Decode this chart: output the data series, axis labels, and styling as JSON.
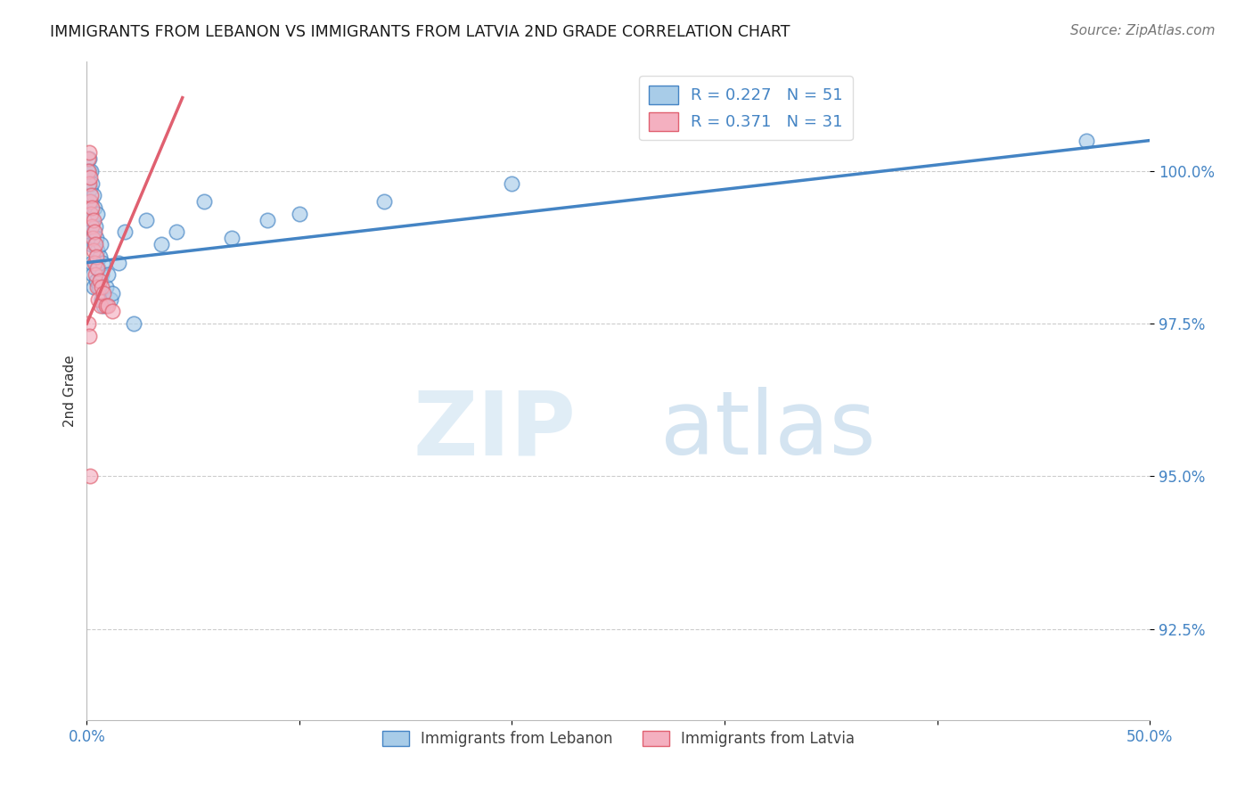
{
  "title": "IMMIGRANTS FROM LEBANON VS IMMIGRANTS FROM LATVIA 2ND GRADE CORRELATION CHART",
  "source": "Source: ZipAtlas.com",
  "ylabel": "2nd Grade",
  "legend_label1": "Immigrants from Lebanon",
  "legend_label2": "Immigrants from Latvia",
  "R1": 0.227,
  "N1": 51,
  "R2": 0.371,
  "N2": 31,
  "color1": "#a8cce8",
  "color2": "#f4b0c0",
  "line_color1": "#4484c4",
  "line_color2": "#e06070",
  "xlim": [
    0.0,
    50.0
  ],
  "ylim": [
    91.0,
    101.8
  ],
  "yticks": [
    92.5,
    95.0,
    97.5,
    100.0
  ],
  "ytick_labels": [
    "92.5%",
    "95.0%",
    "97.5%",
    "100.0%"
  ],
  "xtick_labels": [
    "0.0%",
    "",
    "",
    "",
    "",
    "50.0%"
  ],
  "watermark_zip": "ZIP",
  "watermark_atlas": "atlas",
  "leb_x": [
    0.05,
    0.08,
    0.1,
    0.1,
    0.12,
    0.13,
    0.15,
    0.15,
    0.18,
    0.2,
    0.2,
    0.22,
    0.25,
    0.25,
    0.28,
    0.3,
    0.3,
    0.32,
    0.35,
    0.38,
    0.4,
    0.42,
    0.45,
    0.45,
    0.48,
    0.5,
    0.55,
    0.58,
    0.6,
    0.65,
    0.68,
    0.7,
    0.75,
    0.8,
    0.9,
    1.0,
    1.1,
    1.2,
    1.5,
    1.8,
    2.2,
    2.8,
    3.5,
    4.2,
    5.5,
    6.8,
    8.5,
    10.0,
    14.0,
    20.0,
    47.0
  ],
  "leb_y": [
    99.8,
    100.0,
    99.5,
    100.2,
    99.3,
    100.0,
    99.0,
    99.7,
    98.8,
    99.5,
    100.0,
    98.5,
    99.2,
    99.8,
    98.3,
    99.0,
    99.6,
    98.1,
    98.8,
    99.4,
    98.5,
    99.1,
    98.2,
    98.9,
    98.7,
    99.3,
    98.4,
    98.1,
    98.6,
    98.8,
    97.9,
    98.3,
    98.5,
    97.8,
    98.1,
    98.3,
    97.9,
    98.0,
    98.5,
    99.0,
    97.5,
    99.2,
    98.8,
    99.0,
    99.5,
    98.9,
    99.2,
    99.3,
    99.5,
    99.8,
    100.5
  ],
  "lat_x": [
    0.05,
    0.08,
    0.1,
    0.12,
    0.15,
    0.15,
    0.18,
    0.2,
    0.22,
    0.25,
    0.28,
    0.3,
    0.32,
    0.35,
    0.38,
    0.4,
    0.42,
    0.45,
    0.48,
    0.5,
    0.55,
    0.6,
    0.65,
    0.7,
    0.8,
    0.9,
    1.0,
    1.2,
    0.08,
    0.1,
    0.15
  ],
  "lat_y": [
    100.2,
    100.0,
    99.8,
    100.3,
    99.5,
    99.9,
    99.3,
    99.6,
    99.1,
    99.4,
    98.9,
    99.2,
    98.7,
    99.0,
    98.5,
    98.8,
    98.3,
    98.6,
    98.1,
    98.4,
    97.9,
    98.2,
    97.8,
    98.1,
    98.0,
    97.8,
    97.8,
    97.7,
    97.5,
    97.3,
    95.0
  ],
  "leb_regline_x": [
    0.0,
    50.0
  ],
  "leb_regline_y": [
    98.5,
    100.5
  ],
  "lat_regline_x": [
    0.0,
    4.5
  ],
  "lat_regline_y": [
    97.5,
    101.2
  ]
}
